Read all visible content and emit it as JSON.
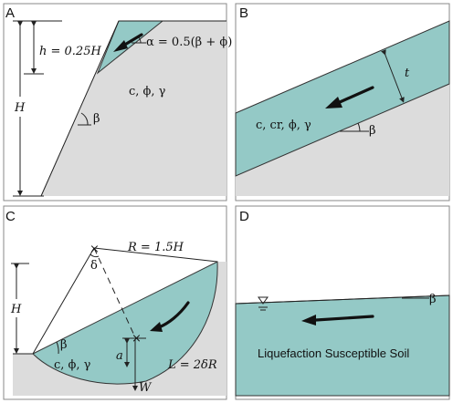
{
  "panels": {
    "a": {
      "letter": "A",
      "h_label": "h = 0.25H",
      "H_label": "H",
      "alpha_label": "α = 0.5(β + ϕ)",
      "props_label": "c, ϕ, γ",
      "beta_label": "β"
    },
    "b": {
      "letter": "B",
      "t_label": "t",
      "props_label": "c, cr, ϕ, γ",
      "beta_label": "β"
    },
    "c": {
      "letter": "C",
      "R_label": "R = 1.5H",
      "delta_label": "δ",
      "H_label": "H",
      "beta_label": "β",
      "props_label": "c, ϕ, γ",
      "a_label": "a",
      "L_label": "L = 2δR",
      "W_label": "W"
    },
    "d": {
      "letter": "D",
      "beta_label": "β",
      "soil_label": "Liquefaction Susceptible Soil"
    }
  },
  "colors": {
    "teal": "#94c9c6",
    "ground": "#dcdcdc",
    "frame": "#8a8a8a"
  }
}
